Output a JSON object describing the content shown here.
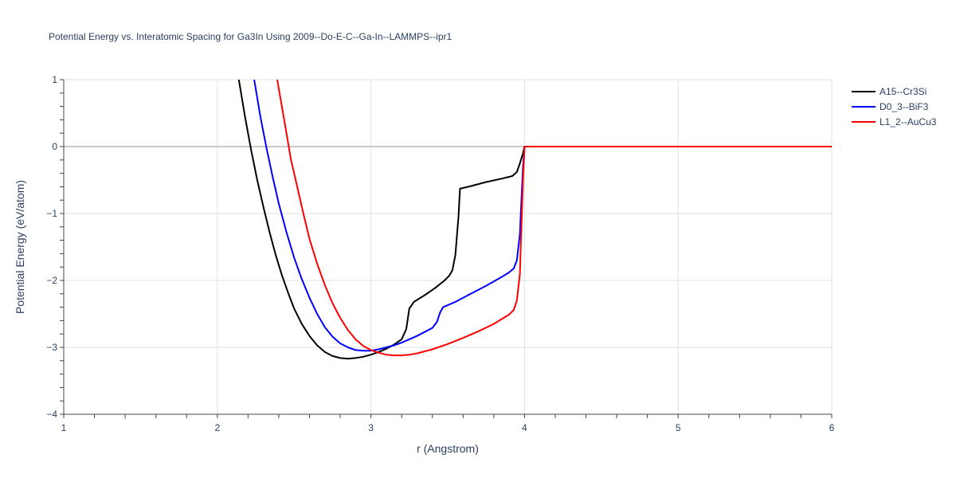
{
  "chart_data": {
    "type": "line",
    "title": "Potential Energy vs. Interatomic Spacing for Ga3In Using 2009--Do-E-C--Ga-In--LAMMPS--ipr1",
    "xlabel": "r (Angstrom)",
    "ylabel": "Potential Energy (eV/atom)",
    "xlim": [
      1,
      6
    ],
    "ylim": [
      -4,
      1
    ],
    "x_ticks": [
      1,
      2,
      3,
      4,
      5,
      6
    ],
    "x_tick_labels": [
      "1",
      "2",
      "3",
      "4",
      "5",
      "6"
    ],
    "y_ticks": [
      1,
      0,
      -1,
      -2,
      -3,
      -4
    ],
    "y_tick_labels": [
      "1",
      "0",
      "−1",
      "−2",
      "−3",
      "−4"
    ],
    "grid": true,
    "legend_position": "top-right",
    "series": [
      {
        "name": "A15--Cr3Si",
        "color": "#000000",
        "points": [
          [
            2.14,
            1.0
          ],
          [
            2.18,
            0.45
          ],
          [
            2.22,
            -0.05
          ],
          [
            2.26,
            -0.5
          ],
          [
            2.3,
            -0.9
          ],
          [
            2.34,
            -1.28
          ],
          [
            2.38,
            -1.62
          ],
          [
            2.42,
            -1.92
          ],
          [
            2.46,
            -2.18
          ],
          [
            2.5,
            -2.42
          ],
          [
            2.55,
            -2.65
          ],
          [
            2.6,
            -2.83
          ],
          [
            2.65,
            -2.97
          ],
          [
            2.7,
            -3.07
          ],
          [
            2.75,
            -3.13
          ],
          [
            2.8,
            -3.16
          ],
          [
            2.85,
            -3.17
          ],
          [
            2.9,
            -3.16
          ],
          [
            2.95,
            -3.14
          ],
          [
            3.0,
            -3.11
          ],
          [
            3.05,
            -3.07
          ],
          [
            3.1,
            -3.02
          ],
          [
            3.15,
            -2.96
          ],
          [
            3.2,
            -2.88
          ],
          [
            3.23,
            -2.73
          ],
          [
            3.25,
            -2.42
          ],
          [
            3.28,
            -2.32
          ],
          [
            3.35,
            -2.22
          ],
          [
            3.42,
            -2.11
          ],
          [
            3.48,
            -2.0
          ],
          [
            3.51,
            -1.93
          ],
          [
            3.53,
            -1.85
          ],
          [
            3.55,
            -1.62
          ],
          [
            3.57,
            -1.05
          ],
          [
            3.58,
            -0.63
          ],
          [
            3.65,
            -0.59
          ],
          [
            3.75,
            -0.53
          ],
          [
            3.85,
            -0.48
          ],
          [
            3.92,
            -0.44
          ],
          [
            3.95,
            -0.38
          ],
          [
            3.97,
            -0.25
          ],
          [
            3.99,
            -0.1
          ],
          [
            4.0,
            0.0
          ],
          [
            6.0,
            0.0
          ]
        ]
      },
      {
        "name": "D0_3--BiF3",
        "color": "#0000ff",
        "points": [
          [
            2.24,
            1.0
          ],
          [
            2.28,
            0.45
          ],
          [
            2.32,
            -0.02
          ],
          [
            2.36,
            -0.45
          ],
          [
            2.4,
            -0.85
          ],
          [
            2.45,
            -1.28
          ],
          [
            2.5,
            -1.66
          ],
          [
            2.55,
            -1.98
          ],
          [
            2.6,
            -2.26
          ],
          [
            2.65,
            -2.5
          ],
          [
            2.7,
            -2.7
          ],
          [
            2.75,
            -2.84
          ],
          [
            2.8,
            -2.94
          ],
          [
            2.85,
            -3.0
          ],
          [
            2.9,
            -3.04
          ],
          [
            2.95,
            -3.05
          ],
          [
            3.0,
            -3.05
          ],
          [
            3.05,
            -3.03
          ],
          [
            3.1,
            -3.0
          ],
          [
            3.15,
            -2.97
          ],
          [
            3.2,
            -2.93
          ],
          [
            3.25,
            -2.88
          ],
          [
            3.3,
            -2.83
          ],
          [
            3.35,
            -2.77
          ],
          [
            3.4,
            -2.71
          ],
          [
            3.43,
            -2.62
          ],
          [
            3.45,
            -2.48
          ],
          [
            3.47,
            -2.4
          ],
          [
            3.55,
            -2.32
          ],
          [
            3.65,
            -2.2
          ],
          [
            3.75,
            -2.08
          ],
          [
            3.85,
            -1.95
          ],
          [
            3.9,
            -1.88
          ],
          [
            3.93,
            -1.82
          ],
          [
            3.95,
            -1.7
          ],
          [
            3.97,
            -1.3
          ],
          [
            3.98,
            -0.8
          ],
          [
            3.99,
            -0.3
          ],
          [
            4.0,
            0.0
          ],
          [
            6.0,
            0.0
          ]
        ]
      },
      {
        "name": "L1_2--AuCu3",
        "color": "#ff0000",
        "points": [
          [
            2.39,
            1.0
          ],
          [
            2.42,
            0.6
          ],
          [
            2.45,
            0.2
          ],
          [
            2.48,
            -0.2
          ],
          [
            2.52,
            -0.6
          ],
          [
            2.56,
            -1.0
          ],
          [
            2.6,
            -1.38
          ],
          [
            2.65,
            -1.75
          ],
          [
            2.7,
            -2.07
          ],
          [
            2.75,
            -2.34
          ],
          [
            2.8,
            -2.56
          ],
          [
            2.85,
            -2.74
          ],
          [
            2.9,
            -2.88
          ],
          [
            2.95,
            -2.98
          ],
          [
            3.0,
            -3.04
          ],
          [
            3.05,
            -3.08
          ],
          [
            3.1,
            -3.11
          ],
          [
            3.15,
            -3.12
          ],
          [
            3.2,
            -3.12
          ],
          [
            3.25,
            -3.11
          ],
          [
            3.3,
            -3.09
          ],
          [
            3.35,
            -3.06
          ],
          [
            3.4,
            -3.03
          ],
          [
            3.5,
            -2.95
          ],
          [
            3.6,
            -2.86
          ],
          [
            3.7,
            -2.76
          ],
          [
            3.8,
            -2.65
          ],
          [
            3.9,
            -2.51
          ],
          [
            3.93,
            -2.44
          ],
          [
            3.95,
            -2.3
          ],
          [
            3.97,
            -1.9
          ],
          [
            3.98,
            -1.2
          ],
          [
            3.99,
            -0.5
          ],
          [
            4.0,
            0.0
          ],
          [
            6.0,
            0.0
          ]
        ]
      }
    ]
  }
}
